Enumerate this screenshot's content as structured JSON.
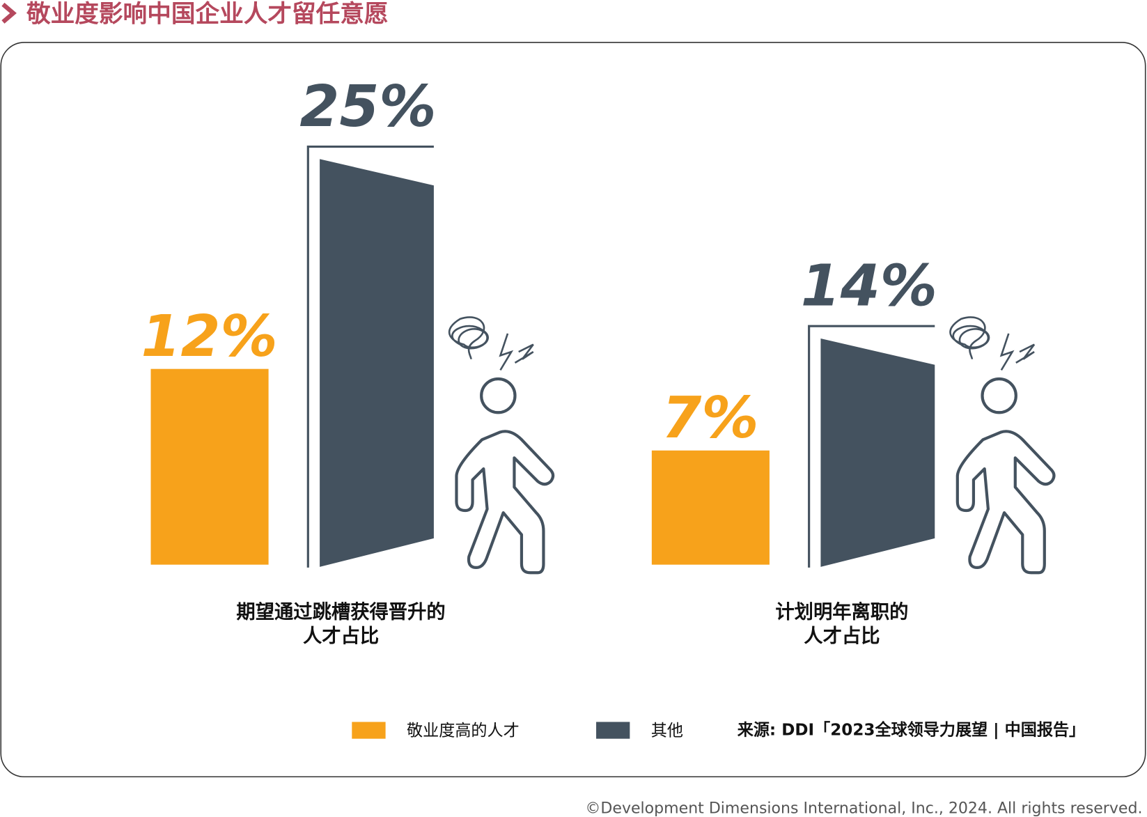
{
  "chart_data": {
    "type": "bar",
    "title": "敬业度影响中国企业人才留任意愿",
    "categories": [
      [
        "期望通过跳槽获得晋升的",
        "人才占比"
      ],
      [
        "计划明年离职的",
        "人才占比"
      ]
    ],
    "series": [
      {
        "name": "敬业度高的人才",
        "color": "#f7a21b",
        "values": [
          12,
          7
        ],
        "value_labels": [
          "12%",
          "7%"
        ]
      },
      {
        "name": "其他",
        "color": "#44525f",
        "values": [
          25,
          14
        ],
        "value_labels": [
          "25%",
          "14%"
        ]
      }
    ],
    "source": "来源: DDI「2023全球领导力展望 | 中国报告」",
    "copyright": "©Development Dimensions International, Inc., 2024. All rights reserved."
  }
}
